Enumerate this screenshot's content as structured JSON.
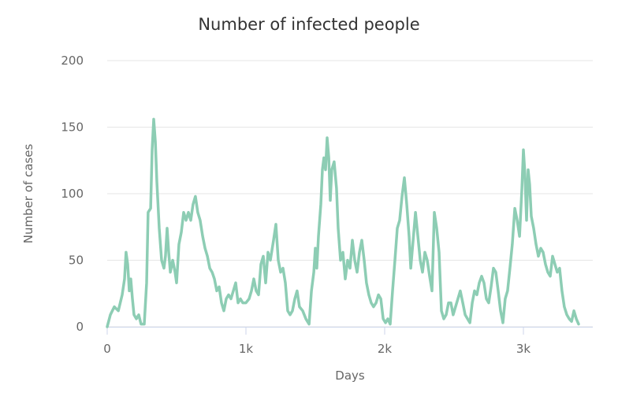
{
  "chart_data": {
    "type": "line",
    "title": "Number of infected people",
    "x_label": "Days",
    "y_label": "Number of cases",
    "color": "#8dcdb4",
    "grid": true,
    "xlim": [
      0,
      3500
    ],
    "xticks": [
      0,
      {
        "value": 1000,
        "label": "1k"
      },
      {
        "value": 2000,
        "label": "2k"
      },
      {
        "value": 3000,
        "label": "3k"
      }
    ],
    "ylim": [
      0,
      200
    ],
    "yticks": [
      0,
      50,
      100,
      150,
      200
    ],
    "x": [
      0,
      23,
      51,
      80,
      108,
      125,
      136,
      148,
      159,
      170,
      182,
      193,
      210,
      227,
      244,
      267,
      284,
      295,
      313,
      324,
      335,
      347,
      358,
      375,
      392,
      409,
      420,
      432,
      443,
      455,
      472,
      489,
      500,
      517,
      534,
      551,
      568,
      585,
      602,
      619,
      636,
      653,
      670,
      688,
      705,
      722,
      739,
      756,
      773,
      790,
      807,
      824,
      841,
      858,
      875,
      892,
      909,
      926,
      943,
      960,
      977,
      1000,
      1023,
      1040,
      1057,
      1074,
      1091,
      1108,
      1125,
      1142,
      1159,
      1176,
      1199,
      1216,
      1233,
      1250,
      1267,
      1284,
      1301,
      1318,
      1335,
      1352,
      1369,
      1386,
      1409,
      1432,
      1455,
      1472,
      1489,
      1500,
      1511,
      1523,
      1540,
      1551,
      1562,
      1574,
      1585,
      1597,
      1608,
      1619,
      1636,
      1653,
      1665,
      1682,
      1699,
      1716,
      1733,
      1750,
      1767,
      1784,
      1801,
      1818,
      1835,
      1852,
      1869,
      1886,
      1903,
      1920,
      1938,
      1955,
      1972,
      1989,
      2006,
      2023,
      2040,
      2057,
      2074,
      2091,
      2108,
      2125,
      2142,
      2159,
      2176,
      2188,
      2205,
      2222,
      2239,
      2256,
      2273,
      2290,
      2307,
      2324,
      2341,
      2358,
      2375,
      2392,
      2409,
      2426,
      2443,
      2460,
      2477,
      2494,
      2511,
      2528,
      2545,
      2563,
      2580,
      2597,
      2614,
      2631,
      2648,
      2665,
      2682,
      2699,
      2716,
      2733,
      2750,
      2767,
      2784,
      2801,
      2818,
      2835,
      2852,
      2869,
      2886,
      2903,
      2920,
      2938,
      2955,
      2972,
      2989,
      3000,
      3011,
      3023,
      3034,
      3045,
      3057,
      3074,
      3091,
      3108,
      3125,
      3142,
      3159,
      3176,
      3193,
      3210,
      3227,
      3244,
      3261,
      3278,
      3295,
      3313,
      3330,
      3347,
      3364,
      3381,
      3398
    ],
    "values": [
      0,
      9,
      15,
      12,
      24,
      36,
      56,
      47,
      27,
      36,
      21,
      9,
      6,
      9,
      2,
      2,
      33,
      86,
      89,
      133,
      156,
      139,
      109,
      74,
      50,
      44,
      53,
      74,
      56,
      41,
      50,
      41,
      33,
      62,
      71,
      86,
      80,
      86,
      80,
      92,
      98,
      86,
      80,
      68,
      59,
      53,
      44,
      41,
      36,
      27,
      30,
      18,
      12,
      21,
      24,
      21,
      27,
      33,
      18,
      21,
      18,
      18,
      21,
      27,
      36,
      27,
      24,
      47,
      53,
      33,
      56,
      50,
      65,
      77,
      50,
      41,
      44,
      33,
      12,
      9,
      12,
      21,
      27,
      15,
      12,
      6,
      2,
      27,
      41,
      59,
      44,
      68,
      92,
      118,
      127,
      118,
      142,
      127,
      95,
      118,
      124,
      104,
      74,
      50,
      56,
      36,
      50,
      44,
      65,
      50,
      41,
      56,
      65,
      50,
      33,
      24,
      18,
      15,
      18,
      24,
      21,
      6,
      3,
      6,
      2,
      27,
      50,
      74,
      80,
      98,
      112,
      92,
      68,
      44,
      65,
      86,
      68,
      50,
      41,
      56,
      50,
      38,
      27,
      86,
      74,
      56,
      12,
      6,
      9,
      18,
      18,
      9,
      15,
      21,
      27,
      18,
      9,
      6,
      3,
      18,
      27,
      24,
      33,
      38,
      33,
      21,
      18,
      30,
      44,
      41,
      27,
      12,
      3,
      21,
      27,
      44,
      62,
      89,
      80,
      68,
      104,
      133,
      115,
      80,
      118,
      107,
      83,
      74,
      62,
      53,
      59,
      56,
      47,
      41,
      38,
      53,
      47,
      41,
      44,
      27,
      15,
      9,
      6,
      4,
      12,
      6,
      2
    ]
  }
}
